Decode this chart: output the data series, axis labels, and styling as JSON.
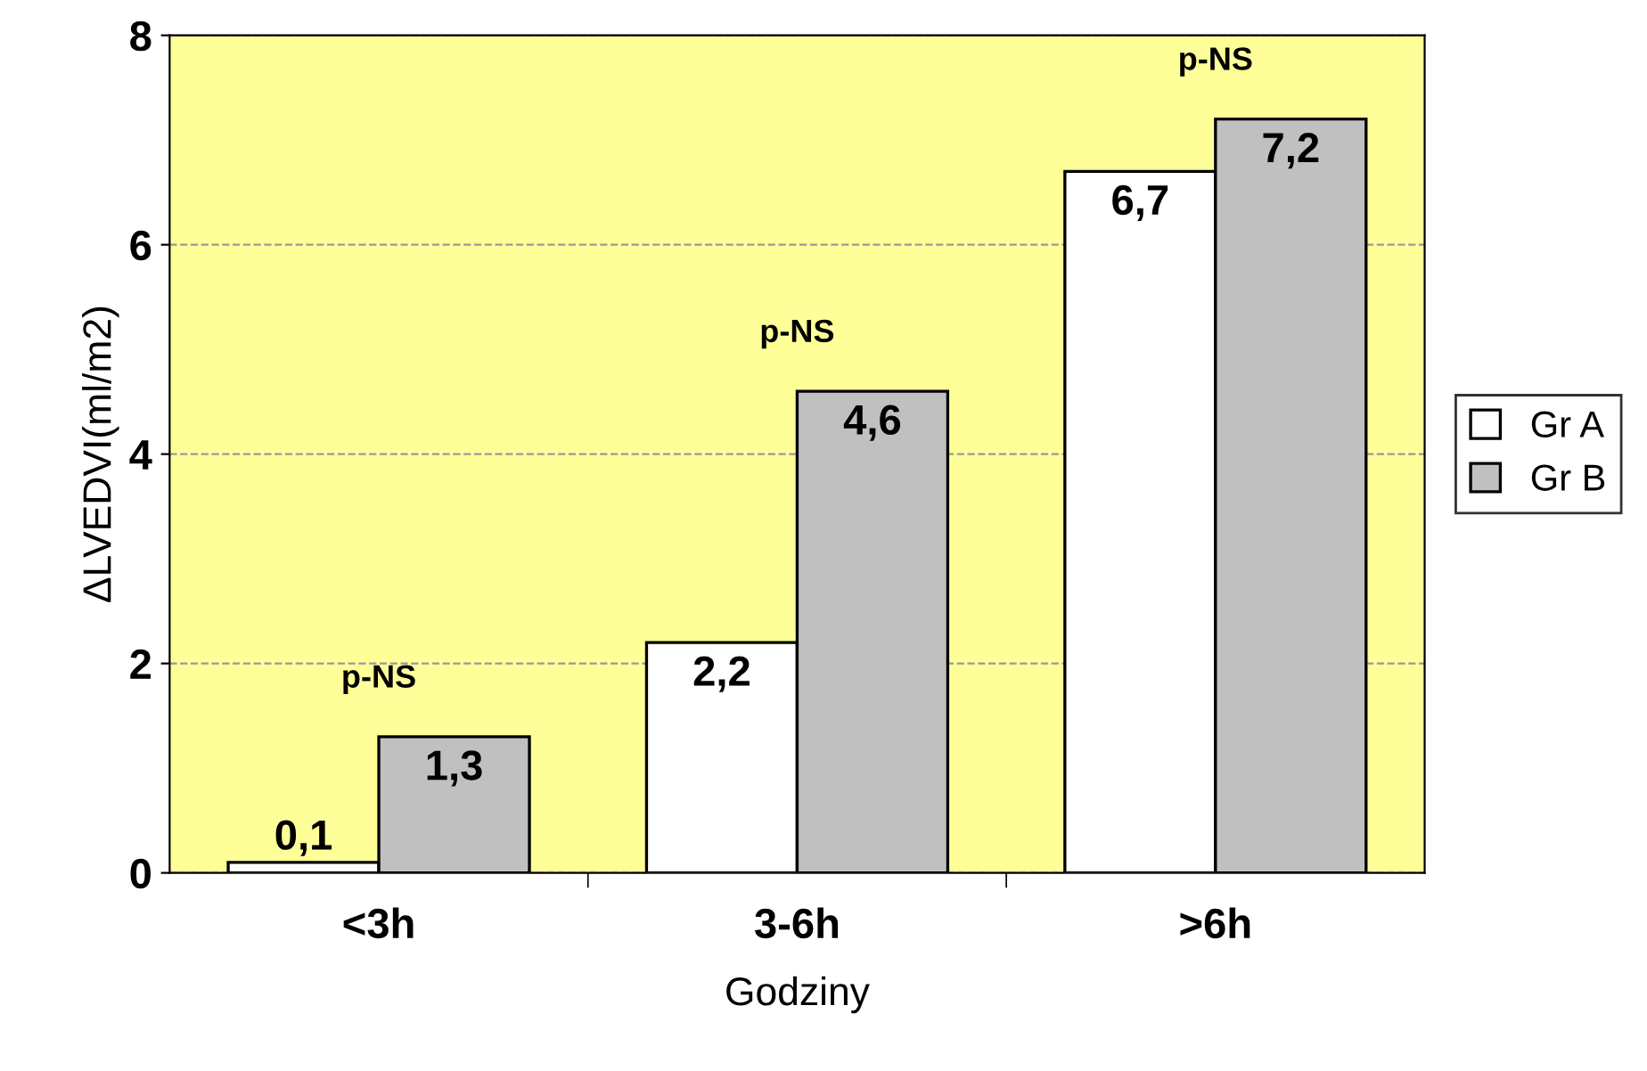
{
  "chart_data": {
    "type": "bar",
    "xlabel": "Godziny",
    "ylabel": "ΔLVEDVI(ml/m2)",
    "categories": [
      "<3h",
      "3-6h",
      ">6h"
    ],
    "series": [
      {
        "name": "Gr A",
        "color": "#ffffff",
        "values": [
          0.1,
          2.2,
          6.7
        ],
        "value_labels": [
          "0,1",
          "2,2",
          "6,7"
        ]
      },
      {
        "name": "Gr B",
        "color": "#c0c0c0",
        "values": [
          1.3,
          4.6,
          7.2
        ],
        "value_labels": [
          "1,3",
          "4,6",
          "7,2"
        ]
      }
    ],
    "ylim": [
      0,
      8
    ],
    "yticks": [
      0,
      2,
      4,
      6,
      8
    ],
    "grid": "y",
    "legend": "right",
    "annotations": [
      "p-NS",
      "p-NS",
      "p-NS"
    ]
  }
}
